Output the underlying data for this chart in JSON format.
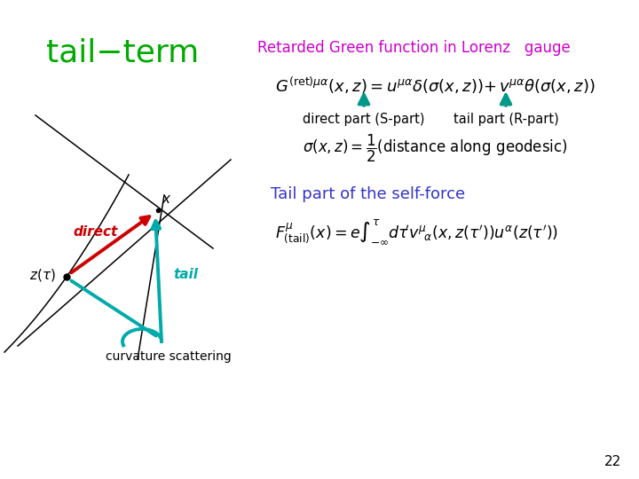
{
  "title": "tail−term",
  "title_color": "#00aa00",
  "subtitle": "Retarded Green function in Lorenz  gauge",
  "subtitle_color": "#cc00cc",
  "bg_color": "#ffffff",
  "page_number": "22",
  "direct_label": "direct",
  "tail_label": "tail",
  "curvature_label": "curvature scattering",
  "direct_part_label": "direct part (S-part)",
  "tail_part_label": "tail part (R-part)",
  "tail_self_force_label": "Tail part of the self-force",
  "tail_self_force_color": "#3333cc",
  "arrow_teal": "#009988",
  "direct_color": "#cc0000",
  "tail_color": "#00aaaa",
  "line_color": "#000000"
}
